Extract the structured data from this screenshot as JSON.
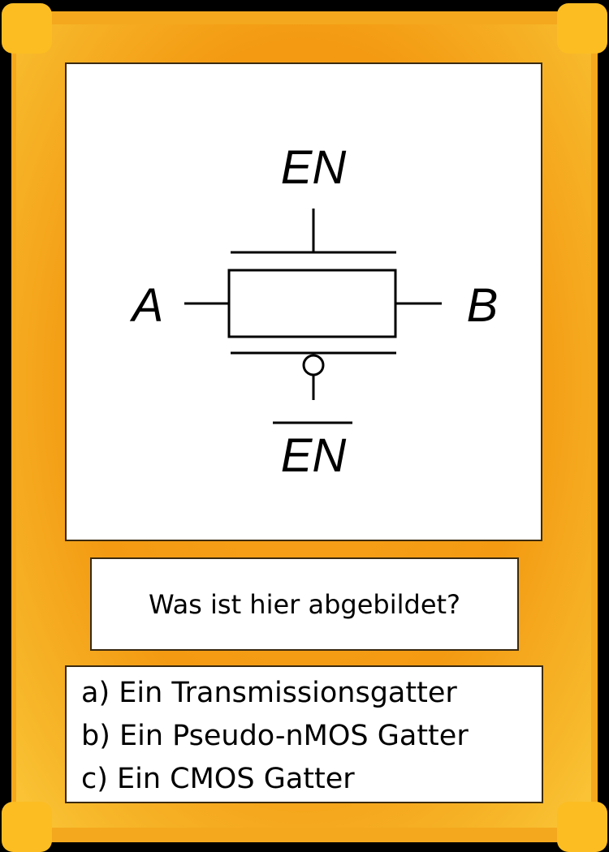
{
  "diagram": {
    "label_top": "EN",
    "label_bottom": "EN",
    "label_left": "A",
    "label_right": "B"
  },
  "question": {
    "text": "Was ist hier abgebildet?"
  },
  "answers": [
    {
      "text": "a) Ein Transmissionsgatter"
    },
    {
      "text": "b) Ein Pseudo-nMOS Gatter"
    },
    {
      "text": "c) Ein CMOS Gatter"
    }
  ],
  "colors": {
    "frame": "#f39a12",
    "corner": "#fbbd22",
    "background": "#000000",
    "panel": "#ffffff"
  }
}
